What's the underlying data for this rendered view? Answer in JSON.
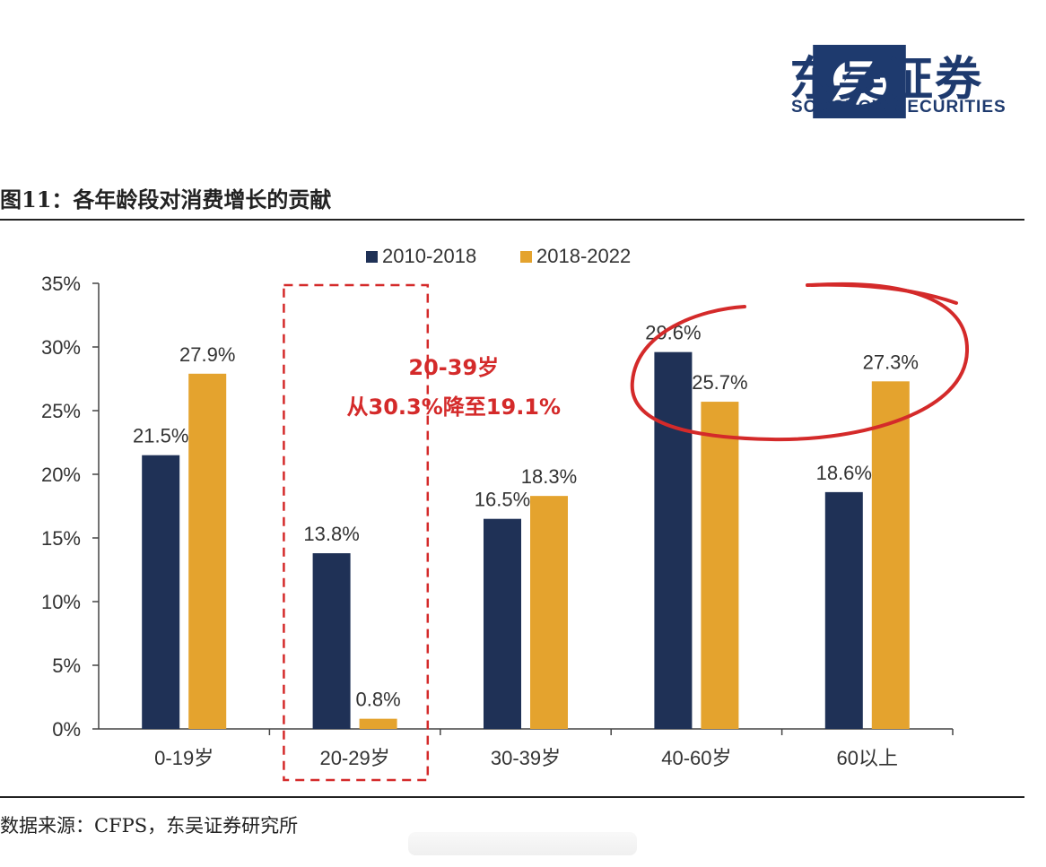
{
  "header": {
    "logo_cn": "东吴证券",
    "logo_en": "SOOCHOW SECURITIES"
  },
  "figure": {
    "title": "图11：各年龄段对消费增长的贡献",
    "source": "数据来源：CFPS，东吴证券研究所"
  },
  "annotation": {
    "line1": "20-39岁",
    "line2": "从30.3%降至19.1%"
  },
  "colors": {
    "series1": "#1f3156",
    "series2": "#e4a32e",
    "annotation": "#d42a2a",
    "axis": "#444444",
    "logo": "#1e3a6e"
  },
  "chart_data": {
    "type": "bar",
    "categories": [
      "0-19岁",
      "20-29岁",
      "30-39岁",
      "40-60岁",
      "60以上"
    ],
    "series": [
      {
        "name": "2010-2018",
        "values": [
          21.5,
          13.8,
          16.5,
          29.6,
          18.6
        ]
      },
      {
        "name": "2018-2022",
        "values": [
          27.9,
          0.8,
          18.3,
          25.7,
          27.3
        ]
      }
    ],
    "data_labels": [
      [
        "21.5%",
        "13.8%",
        "16.5%",
        "29.6%",
        "18.6%"
      ],
      [
        "27.9%",
        "0.8%",
        "18.3%",
        "25.7%",
        "27.3%"
      ]
    ],
    "y_ticks": [
      "0%",
      "5%",
      "10%",
      "15%",
      "20%",
      "25%",
      "30%",
      "35%"
    ],
    "ylim": [
      0,
      35
    ],
    "grid": false,
    "legend": "top-center"
  }
}
